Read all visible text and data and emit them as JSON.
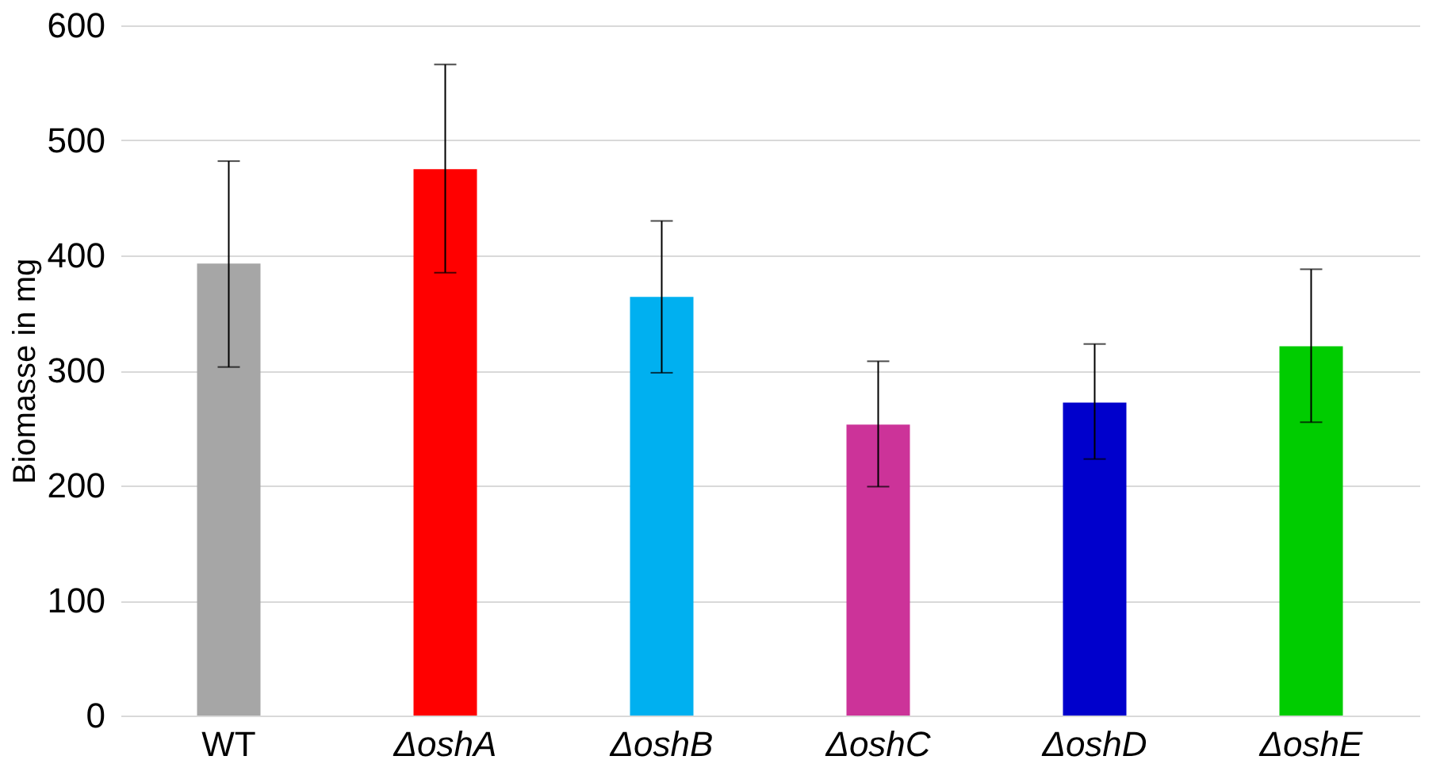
{
  "chart_data": {
    "type": "bar",
    "ylabel": "Biomasse in mg",
    "categories": [
      "WT",
      "ΔoshA",
      "ΔoshB",
      "ΔoshC",
      "ΔoshD",
      "ΔoshE"
    ],
    "values": [
      393,
      475,
      364,
      253,
      272,
      321
    ],
    "colors": [
      "#a6a6a6",
      "#ff0000",
      "#00b0f0",
      "#cc3399",
      "#0000cc",
      "#00cc00"
    ],
    "errors": [
      [
        303,
        482
      ],
      [
        385,
        566
      ],
      [
        298,
        430
      ],
      [
        199,
        308
      ],
      [
        223,
        323
      ],
      [
        255,
        388
      ]
    ],
    "ylim": [
      0,
      600
    ],
    "yticks": [
      0,
      100,
      200,
      300,
      400,
      500,
      600
    ],
    "grid": "y"
  }
}
